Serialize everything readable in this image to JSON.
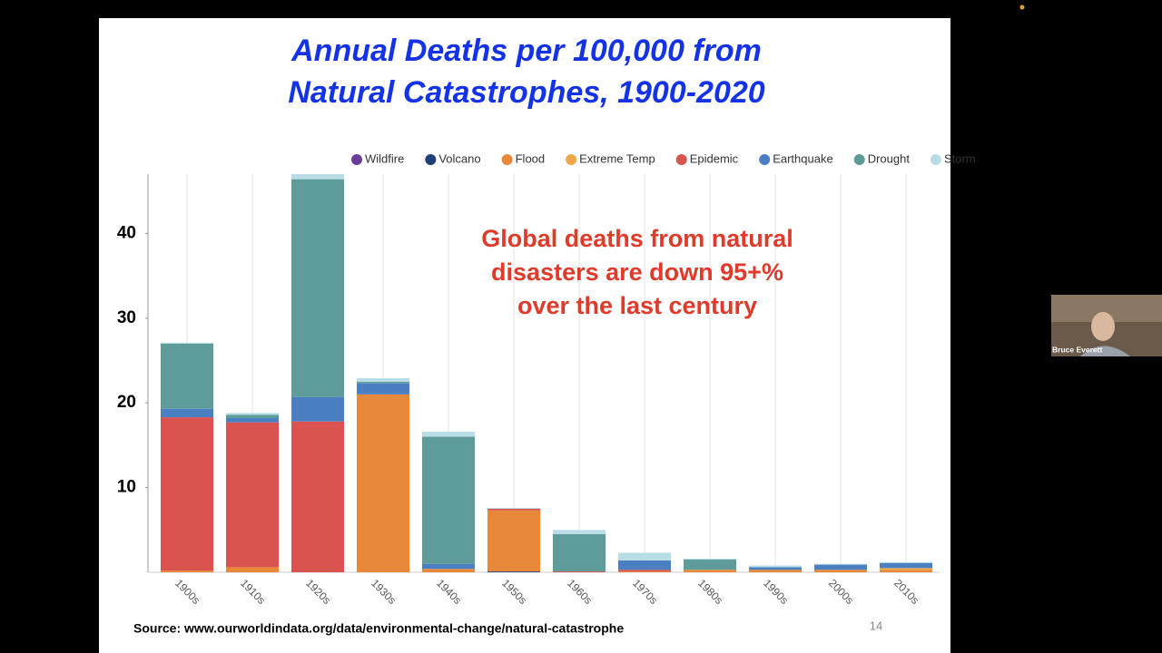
{
  "chart_data": {
    "type": "stacked-bar",
    "title": [
      "Annual Deaths per 100,000 from",
      "Natural Catastrophes, 1900-2020"
    ],
    "annotation": [
      "Global deaths from natural",
      "disasters are down 95+%",
      "over the last century"
    ],
    "categories": [
      "1900s",
      "1910s",
      "1920s",
      "1930s",
      "1940s",
      "1950s",
      "1960s",
      "1970s",
      "1980s",
      "1990s",
      "2000s",
      "2010s"
    ],
    "series": [
      {
        "name": "Wildfire",
        "color": "#6a3d9a",
        "values": [
          0,
          0,
          0,
          0,
          0,
          0,
          0,
          0,
          0,
          0,
          0,
          0
        ]
      },
      {
        "name": "Volcano",
        "color": "#1f3f7a",
        "values": [
          0,
          0,
          0,
          0,
          0,
          0.1,
          0,
          0,
          0,
          0,
          0,
          0
        ]
      },
      {
        "name": "Flood",
        "color": "#e8883a",
        "values": [
          0.2,
          0.6,
          0,
          21.0,
          0.4,
          7.2,
          0,
          0.1,
          0.3,
          0.3,
          0.3,
          0.3
        ]
      },
      {
        "name": "Extreme Temp",
        "color": "#f0a64a",
        "values": [
          0,
          0,
          0,
          0,
          0,
          0,
          0,
          0,
          0,
          0,
          0,
          0.2
        ]
      },
      {
        "name": "Epidemic",
        "color": "#d9534f",
        "values": [
          18.1,
          17.1,
          17.8,
          0,
          0,
          0.2,
          0.1,
          0.2,
          0,
          0,
          0,
          0
        ]
      },
      {
        "name": "Earthquake",
        "color": "#4a7fc1",
        "values": [
          1.0,
          0.5,
          2.9,
          1.3,
          0.6,
          0,
          0,
          1.1,
          0,
          0.3,
          0.6,
          0.6
        ]
      },
      {
        "name": "Drought",
        "color": "#5e9c99",
        "values": [
          7.7,
          0.4,
          25.7,
          0.2,
          15.0,
          0,
          4.4,
          0,
          1.2,
          0,
          0,
          0
        ]
      },
      {
        "name": "Storm",
        "color": "#b9dde6",
        "values": [
          0.1,
          0.2,
          0.6,
          0.4,
          0.6,
          0.1,
          0.5,
          0.9,
          0.1,
          0.2,
          0.1,
          0.1
        ]
      }
    ],
    "ylim": [
      0,
      47
    ],
    "yticks": [
      10,
      20,
      30,
      40
    ],
    "grid": true
  },
  "source": "Source:  www.ourworldindata.org/data/environmental-change/natural-catastrophe",
  "slide_number": "14",
  "participant": "Bruce Everett"
}
